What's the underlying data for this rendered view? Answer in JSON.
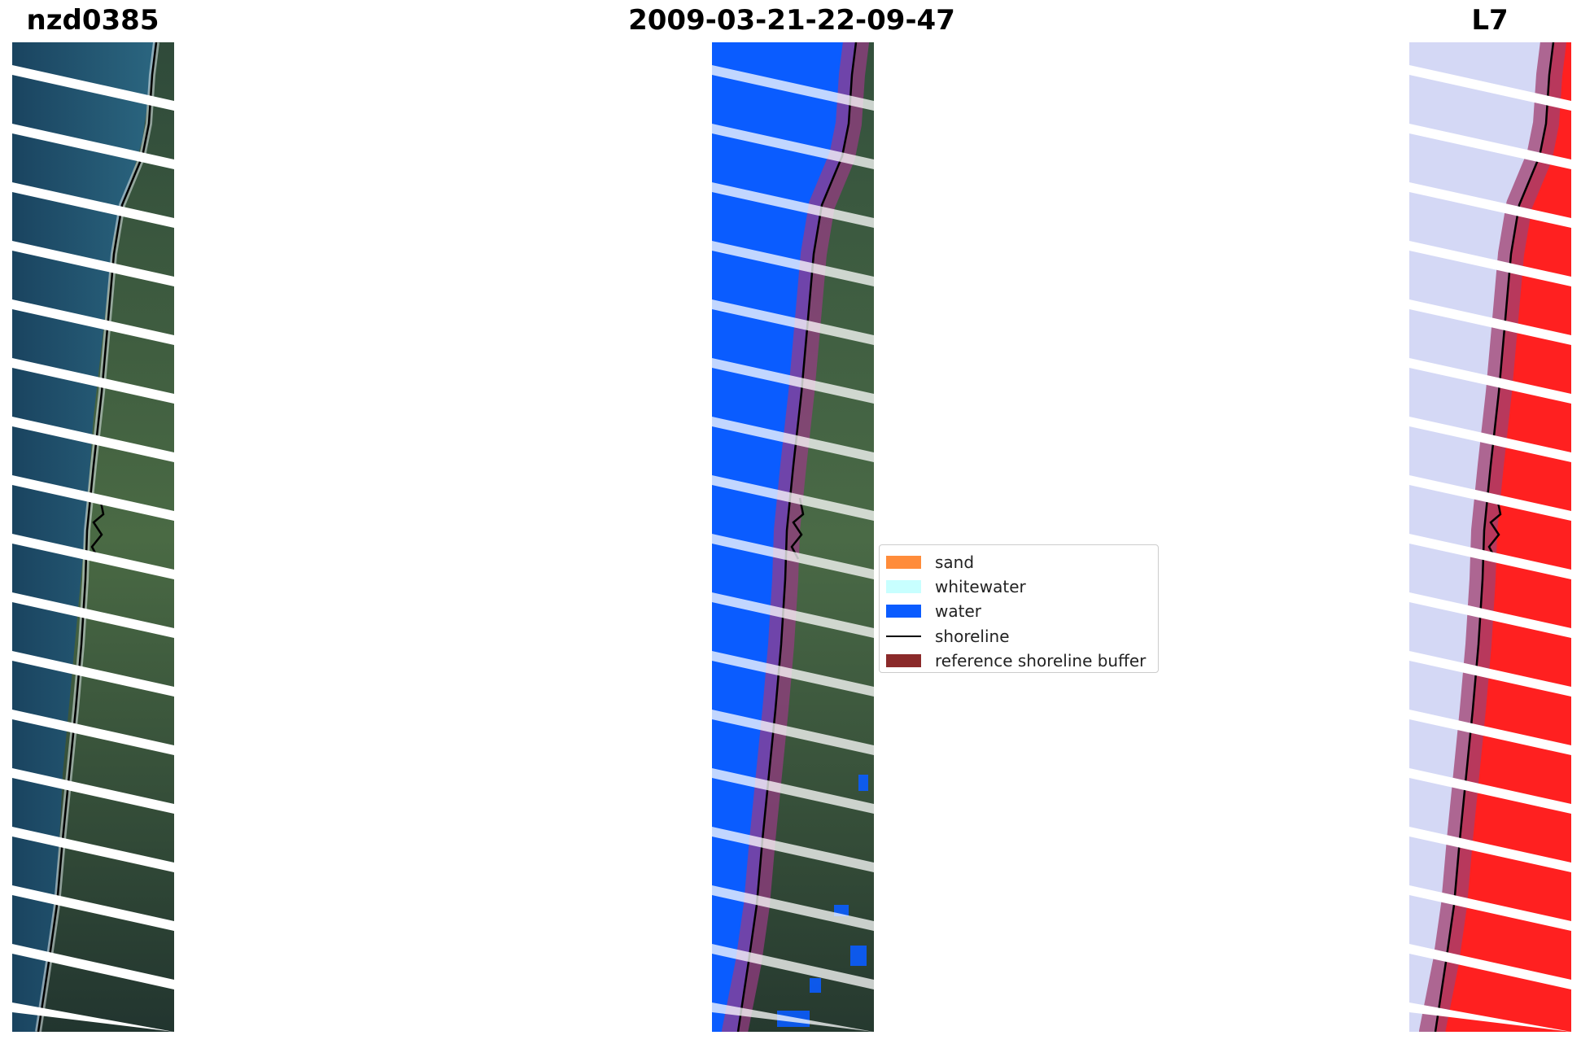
{
  "titles": {
    "left": "nzd0385",
    "center": "2009-03-21-22-09-47",
    "right": "L7"
  },
  "legend": {
    "items": [
      {
        "label": "sand",
        "kind": "patch",
        "color": "#ff8c3a"
      },
      {
        "label": "whitewater",
        "kind": "patch",
        "color": "#c8ffff"
      },
      {
        "label": "water",
        "kind": "patch",
        "color": "#0a5cff"
      },
      {
        "label": "shoreline",
        "kind": "line",
        "color": "#000000"
      },
      {
        "label": "reference shoreline buffer",
        "kind": "patch",
        "color": "#8b2a2a"
      }
    ]
  },
  "colors": {
    "sea_rgb": "#1e4e6a",
    "land_rgb": "#3a5a3c",
    "surf": "#d8e4ea",
    "classified_water": "#0a5cff",
    "buffer_overlay": "#a04080",
    "ndwi_water": "#d4d8f5",
    "ndwi_land": "#ff2020",
    "shoreline": "#000000"
  }
}
